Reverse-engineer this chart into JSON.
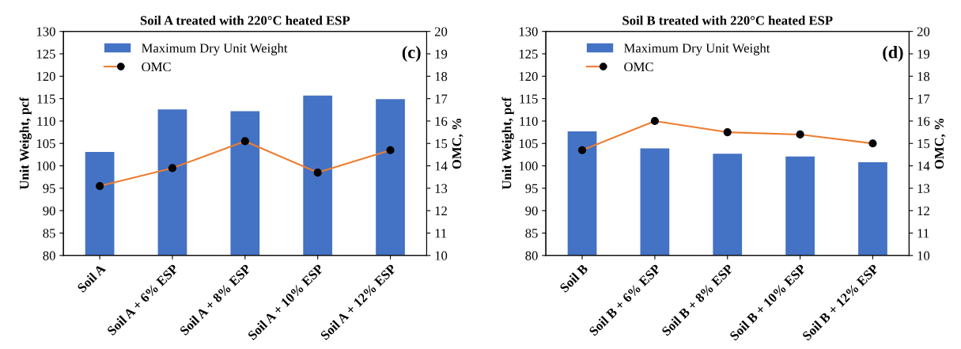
{
  "chart_data": [
    {
      "type": "bar",
      "title": "Soil A treated with 220°C heated ESP",
      "ylabel": "Unit Weight, pcf",
      "y2label": "OMC, %",
      "categories": [
        "Soil A",
        "Soil A + 6% ESP",
        "Soil A + 8% ESP",
        "Soil A + 10% ESP",
        "Soil A + 12% ESP"
      ],
      "series": [
        {
          "name": "Maximum Dry Unit Weight",
          "color": "#4472c4",
          "values": [
            103.1,
            112.6,
            112.2,
            115.7,
            114.9
          ]
        },
        {
          "name": "OMC",
          "type": "line",
          "axis": "y2",
          "color": "#ed7d31",
          "colors": [
            "#000000",
            "#000000",
            "#000000",
            "#000000",
            "#000000"
          ],
          "values": [
            13.1,
            13.9,
            15.1,
            13.7,
            14.7
          ]
        }
      ],
      "ylim": [
        80,
        130
      ],
      "yticks": [
        80,
        85,
        90,
        95,
        100,
        105,
        110,
        115,
        120,
        125,
        130
      ],
      "y2lim": [
        10,
        20
      ],
      "y2ticks": [
        10,
        11,
        12,
        13,
        14,
        15,
        16,
        17,
        18,
        19,
        20
      ],
      "marker": "circle",
      "line_style": "solid",
      "grid": false,
      "legend": "top left",
      "annotations": [
        "(c)"
      ]
    },
    {
      "type": "bar",
      "title": "Soil B treated with 220°C heated ESP",
      "ylabel": "Unit Weight, pcf",
      "y2label": "OMC, %",
      "categories": [
        "Soil B",
        "Soil B + 6% ESP",
        "Soil B + 8% ESP",
        "Soil B + 10% ESP",
        "Soil B + 12% ESP"
      ],
      "series": [
        {
          "name": "Maximum Dry Unit Weight",
          "color": "#4472c4",
          "values": [
            107.7,
            103.9,
            102.7,
            102.1,
            100.8
          ]
        },
        {
          "name": "OMC",
          "type": "line",
          "axis": "y2",
          "color": "#ed7d31",
          "colors": [
            "#000000",
            "#000000",
            "#000000",
            "#000000",
            "#000000"
          ],
          "values": [
            14.7,
            16.0,
            15.5,
            15.4,
            15.0
          ]
        }
      ],
      "ylim": [
        80,
        130
      ],
      "yticks": [
        80,
        85,
        90,
        95,
        100,
        105,
        110,
        115,
        120,
        125,
        130
      ],
      "y2lim": [
        10,
        20
      ],
      "y2ticks": [
        10,
        11,
        12,
        13,
        14,
        15,
        16,
        17,
        18,
        19,
        20
      ],
      "marker": "circle",
      "line_style": "solid",
      "grid": false,
      "legend": "top left",
      "annotations": [
        "(d)"
      ]
    }
  ]
}
